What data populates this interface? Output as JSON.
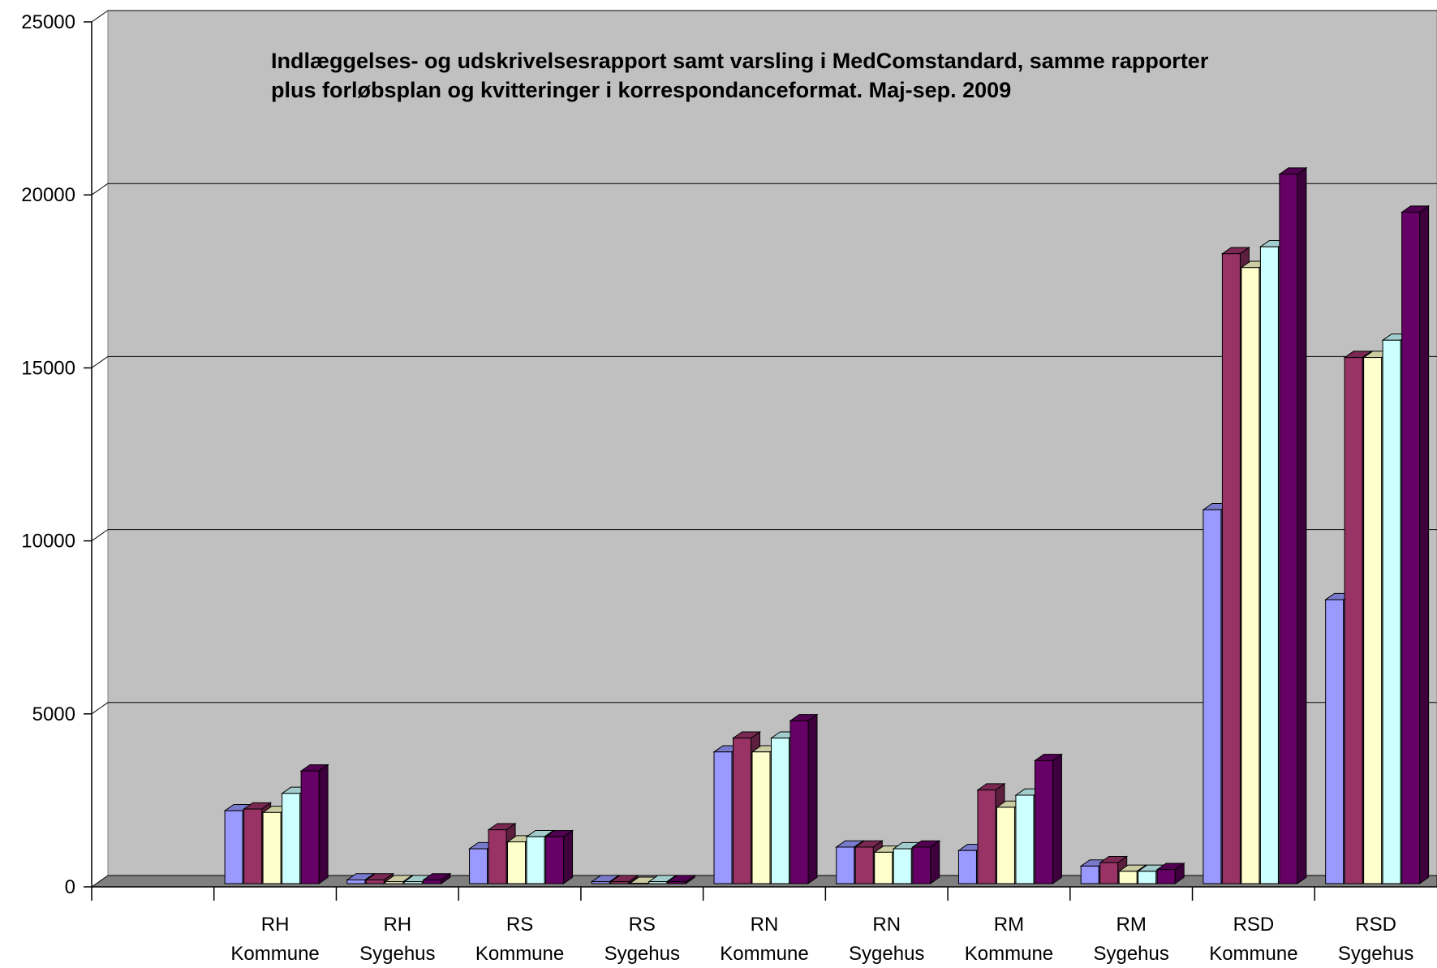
{
  "chart_data": {
    "type": "bar",
    "title_lines": [
      "Indlæggelses- og udskrivelsesrapport samt varsling i MedComstandard, samme rapporter",
      "plus forløbsplan og kvitteringer i korrespondanceformat. Maj-sep. 2009"
    ],
    "xlabel": "",
    "ylabel": "",
    "ylim": [
      0,
      25000
    ],
    "yticks": [
      "0",
      "5000",
      "10000",
      "15000",
      "20000",
      "25000"
    ],
    "grid": true,
    "legend": "none",
    "categories": [
      {
        "line1": "",
        "line2": ""
      },
      {
        "line1": "RH",
        "line2": "Kommune"
      },
      {
        "line1": "RH",
        "line2": "Sygehus"
      },
      {
        "line1": "RS",
        "line2": "Kommune"
      },
      {
        "line1": "RS",
        "line2": "Sygehus"
      },
      {
        "line1": "RN",
        "line2": "Kommune"
      },
      {
        "line1": "RN",
        "line2": "Sygehus"
      },
      {
        "line1": "RM",
        "line2": "Kommune"
      },
      {
        "line1": "RM",
        "line2": "Sygehus"
      },
      {
        "line1": "RSD",
        "line2": "Kommune"
      },
      {
        "line1": "RSD",
        "line2": "Sygehus"
      }
    ],
    "series": [
      {
        "color": "#9999ff",
        "values": [
          null,
          2200,
          200,
          1100,
          150,
          3900,
          1150,
          1050,
          600,
          10900,
          8300
        ]
      },
      {
        "color": "#993366",
        "values": [
          null,
          2250,
          200,
          1650,
          150,
          4300,
          1150,
          2800,
          700,
          18300,
          15300
        ]
      },
      {
        "color": "#ffffcc",
        "values": [
          null,
          2150,
          150,
          1300,
          100,
          3900,
          1000,
          2300,
          450,
          17900,
          15300
        ]
      },
      {
        "color": "#ccffff",
        "values": [
          null,
          2700,
          150,
          1450,
          150,
          4300,
          1100,
          2650,
          450,
          18500,
          15800
        ]
      },
      {
        "color": "#660066",
        "values": [
          null,
          3350,
          200,
          1450,
          150,
          4800,
          1150,
          3650,
          500,
          20600,
          19500
        ]
      }
    ]
  }
}
